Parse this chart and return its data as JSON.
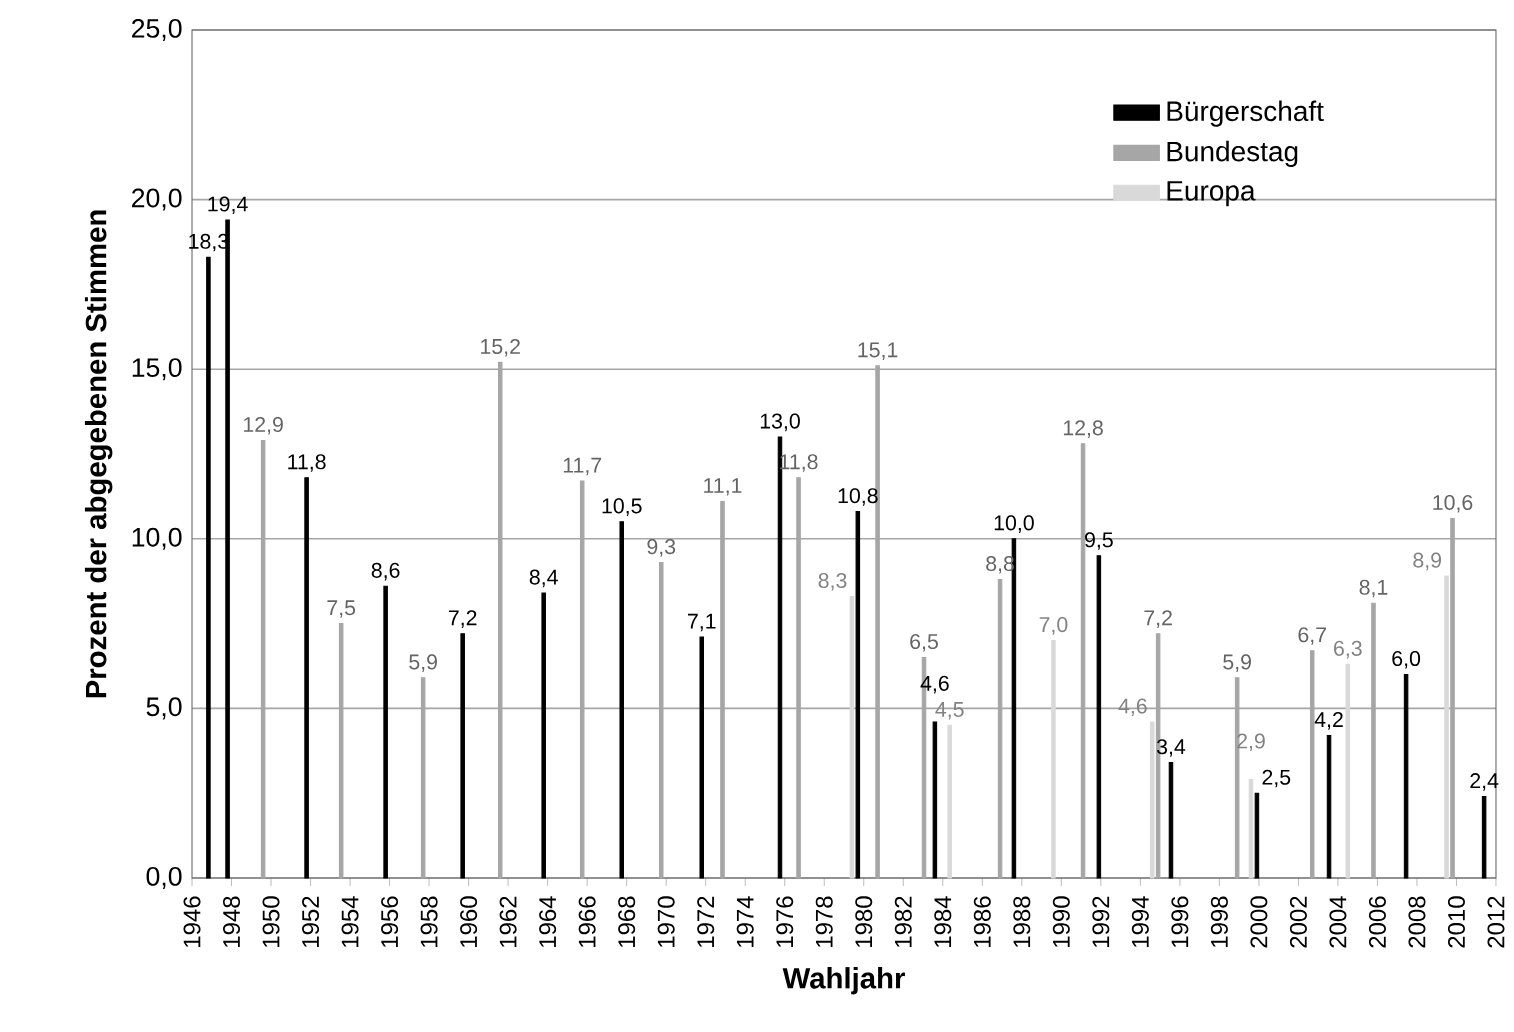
{
  "chart_data": {
    "type": "bar",
    "xlabel": "Wahljahr",
    "ylabel": "Prozent der abgegebenen Stimmen",
    "xlim": [
      1946,
      2012
    ],
    "xticks": [
      1946,
      1948,
      1950,
      1952,
      1954,
      1956,
      1958,
      1960,
      1962,
      1964,
      1966,
      1968,
      1970,
      1972,
      1974,
      1976,
      1978,
      1980,
      1982,
      1984,
      1986,
      1988,
      1990,
      1992,
      1994,
      1996,
      1998,
      2000,
      2002,
      2004,
      2006,
      2008,
      2010,
      2012
    ],
    "ylim": [
      0,
      25
    ],
    "yticks": [
      {
        "value": 0,
        "label": "0,0"
      },
      {
        "value": 5,
        "label": "5,0"
      },
      {
        "value": 10,
        "label": "10,0"
      },
      {
        "value": 15,
        "label": "15,0"
      },
      {
        "value": 20,
        "label": "20,0"
      },
      {
        "value": 25,
        "label": "25,0"
      }
    ],
    "grid": "y",
    "legend": "top right",
    "series": [
      {
        "name": "Bürgerschaft",
        "color": "#000000",
        "x": [
          1946.83,
          1947.8,
          1951.8,
          1955.8,
          1959.7,
          1963.8,
          1967.75,
          1971.8,
          1975.76,
          1979.7,
          1983.6,
          1987.6,
          1991.9,
          1995.55,
          1999.9,
          2003.55,
          2007.45,
          2011.4
        ],
        "values": [
          18.3,
          19.4,
          11.8,
          8.6,
          7.2,
          8.4,
          10.5,
          7.1,
          13.0,
          10.8,
          4.6,
          10.0,
          9.5,
          3.4,
          2.5,
          4.2,
          6.0,
          2.4
        ],
        "value_labels": [
          "18,3",
          "19,4",
          "11,8",
          "8,6",
          "7,2",
          "8,4",
          "10,5",
          "7,1",
          "13,0",
          "10,8",
          "4,6",
          "10,0",
          "9,5",
          "3,4",
          "2,5",
          "4,2",
          "6,0",
          "2,4"
        ]
      },
      {
        "name": "Bundestag",
        "color": "#a6a6a6",
        "x": [
          1949.6,
          1953.55,
          1957.7,
          1961.6,
          1965.75,
          1969.75,
          1972.85,
          1976.7,
          1980.7,
          1983.05,
          1986.9,
          1991.1,
          1994.9,
          1998.9,
          2002.7,
          2005.8,
          2009.8
        ],
        "values": [
          12.9,
          7.5,
          5.9,
          15.2,
          11.7,
          9.3,
          11.1,
          11.8,
          15.1,
          6.5,
          8.8,
          12.8,
          7.2,
          5.9,
          6.7,
          8.1,
          10.6
        ],
        "value_labels": [
          "12,9",
          "7,5",
          "5,9",
          "15,2",
          "11,7",
          "9,3",
          "11,1",
          "11,8",
          "15,1",
          "6,5",
          "8,8",
          "12,8",
          "7,2",
          "5,9",
          "6,7",
          "8,1",
          "10,6"
        ]
      },
      {
        "name": "Europa",
        "color": "#d9d9d9",
        "x": [
          1979.4,
          1984.35,
          1989.6,
          1994.6,
          1999.6,
          2004.5,
          2009.5
        ],
        "values": [
          8.3,
          4.5,
          7.0,
          4.6,
          2.9,
          6.3,
          8.9
        ],
        "value_labels": [
          "8,3",
          "4,5",
          "7,0",
          "4,6",
          "2,9",
          "6,3",
          "8,9"
        ]
      }
    ]
  }
}
